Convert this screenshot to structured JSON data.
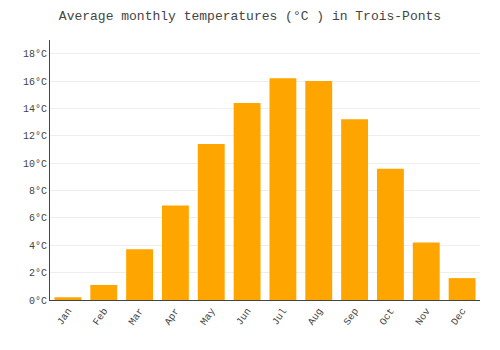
{
  "chart_data": {
    "type": "bar",
    "title": "Average monthly temperatures (°C ) in Trois-Ponts",
    "categories": [
      "Jan",
      "Feb",
      "Mar",
      "Apr",
      "May",
      "Jun",
      "Jul",
      "Aug",
      "Sep",
      "Oct",
      "Nov",
      "Dec"
    ],
    "values": [
      0.2,
      1.1,
      3.7,
      6.9,
      11.4,
      14.4,
      16.2,
      16.0,
      13.2,
      9.6,
      4.2,
      1.6
    ],
    "color": "#FFA500",
    "ylim": [
      0,
      19
    ],
    "yticks": [
      {
        "value": 0,
        "label": "0°C"
      },
      {
        "value": 2,
        "label": "2°C"
      },
      {
        "value": 4,
        "label": "4°C"
      },
      {
        "value": 6,
        "label": "6°C"
      },
      {
        "value": 8,
        "label": "8°C"
      },
      {
        "value": 10,
        "label": "10°C"
      },
      {
        "value": 12,
        "label": "12°C"
      },
      {
        "value": 14,
        "label": "14°C"
      },
      {
        "value": 16,
        "label": "16°C"
      },
      {
        "value": 18,
        "label": "18°C"
      }
    ],
    "grid": true
  }
}
